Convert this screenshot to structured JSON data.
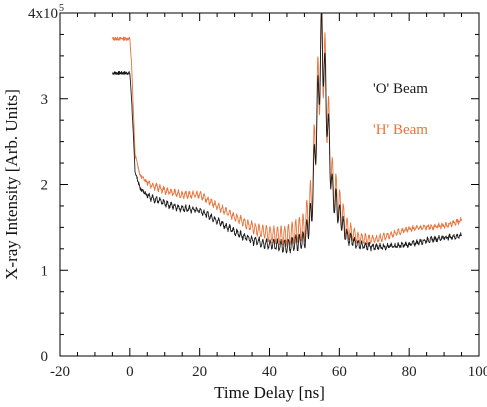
{
  "chart_data": {
    "type": "line",
    "xlabel": "Time Delay [ns]",
    "ylabel": "X-ray Intensity [Arb. Units]",
    "xlim": [
      -20,
      100
    ],
    "ylim": [
      0,
      400000
    ],
    "xticks": [
      -20,
      0,
      20,
      40,
      60,
      80,
      100
    ],
    "yticks": [
      0,
      1,
      2,
      3
    ],
    "y_multiplier": "4x10",
    "y_multiplier_exp": "5",
    "legend_placement": "right-inside",
    "grid": false,
    "colors": {
      "o_beam": "#1a1a1a",
      "h_beam": "#e8743b",
      "axis": "#000000"
    },
    "series": [
      {
        "name": "'O' Beam",
        "key": "o_beam",
        "x": [
          -5,
          0,
          0.5,
          1.5,
          3,
          6,
          10,
          15,
          20,
          25,
          30,
          35,
          40,
          45,
          50,
          52,
          55,
          58,
          62,
          65,
          70,
          75,
          80,
          85,
          90,
          95
        ],
        "y": [
          330000,
          330000,
          300000,
          215000,
          195000,
          185000,
          178000,
          172000,
          170000,
          158000,
          145000,
          135000,
          130000,
          128000,
          135000,
          165000,
          375000,
          190000,
          140000,
          130000,
          127000,
          128000,
          130000,
          135000,
          138000,
          140000
        ],
        "osc_amp": [
          3000,
          3000,
          4000,
          4000,
          3000,
          3000,
          3000,
          3000,
          3000,
          3000,
          3000,
          4000,
          5000,
          7000,
          10000,
          20000,
          40000,
          20000,
          8000,
          4000,
          3000,
          2000,
          2000,
          2000,
          2000,
          2000
        ]
      },
      {
        "name": "'H' Beam",
        "key": "h_beam",
        "x": [
          -5,
          0,
          0.5,
          1.5,
          3,
          6,
          10,
          15,
          20,
          25,
          30,
          35,
          40,
          45,
          50,
          52,
          55,
          58,
          62,
          65,
          70,
          75,
          80,
          85,
          90,
          95
        ],
        "y": [
          370000,
          370000,
          340000,
          235000,
          210000,
          200000,
          193000,
          188000,
          188000,
          175000,
          162000,
          150000,
          142000,
          140000,
          150000,
          180000,
          380000,
          200000,
          150000,
          138000,
          135000,
          142000,
          148000,
          150000,
          152000,
          158000
        ],
        "osc_amp": [
          3000,
          3000,
          4000,
          4000,
          3000,
          3000,
          3000,
          3000,
          3000,
          3000,
          4000,
          6000,
          8000,
          11000,
          16000,
          30000,
          60000,
          30000,
          12000,
          6000,
          4000,
          3000,
          2000,
          2000,
          2000,
          2000
        ]
      }
    ]
  }
}
